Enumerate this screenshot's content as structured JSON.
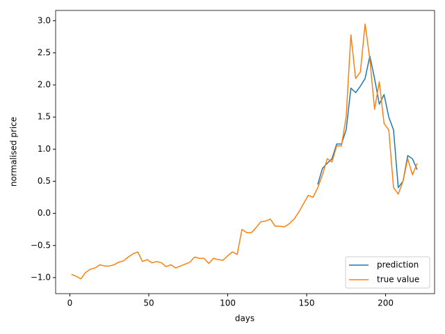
{
  "chart_data": {
    "type": "line",
    "xlabel": "days",
    "ylabel": "normalised price",
    "x": [
      1,
      4,
      7,
      10,
      13,
      16,
      19,
      22,
      25,
      28,
      31,
      34,
      37,
      40,
      43,
      46,
      49,
      52,
      55,
      58,
      61,
      64,
      67,
      70,
      73,
      76,
      79,
      82,
      85,
      88,
      91,
      94,
      97,
      100,
      103,
      106,
      109,
      112,
      115,
      118,
      121,
      124,
      127,
      130,
      133,
      136,
      139,
      142,
      145,
      148,
      151,
      154,
      157,
      160,
      163,
      166,
      169,
      172,
      175,
      178,
      181,
      184,
      187,
      190,
      193,
      196,
      199,
      202,
      205,
      208,
      211,
      214,
      217,
      220
    ],
    "series": [
      {
        "name": "prediction",
        "color": "#1f77b4",
        "values": [
          null,
          null,
          null,
          null,
          null,
          null,
          null,
          null,
          null,
          null,
          null,
          null,
          null,
          null,
          null,
          null,
          null,
          null,
          null,
          null,
          null,
          null,
          null,
          null,
          null,
          null,
          null,
          null,
          null,
          null,
          null,
          null,
          null,
          null,
          null,
          null,
          null,
          null,
          null,
          null,
          null,
          null,
          null,
          null,
          null,
          null,
          null,
          null,
          null,
          null,
          null,
          null,
          0.45,
          0.7,
          0.78,
          0.85,
          1.08,
          1.08,
          1.3,
          1.95,
          1.88,
          1.98,
          2.1,
          2.45,
          2.1,
          1.7,
          1.85,
          1.5,
          1.3,
          0.4,
          0.5,
          0.9,
          0.85,
          0.68
        ]
      },
      {
        "name": "true value",
        "color": "#ff7f0e",
        "values": [
          -0.95,
          -0.98,
          -1.02,
          -0.92,
          -0.87,
          -0.85,
          -0.8,
          -0.82,
          -0.82,
          -0.8,
          -0.76,
          -0.74,
          -0.68,
          -0.63,
          -0.6,
          -0.75,
          -0.72,
          -0.77,
          -0.75,
          -0.77,
          -0.83,
          -0.8,
          -0.85,
          -0.82,
          -0.79,
          -0.76,
          -0.68,
          -0.7,
          -0.7,
          -0.78,
          -0.7,
          -0.72,
          -0.73,
          -0.66,
          -0.6,
          -0.64,
          -0.25,
          -0.3,
          -0.3,
          -0.22,
          -0.13,
          -0.12,
          -0.09,
          -0.2,
          -0.2,
          -0.21,
          -0.16,
          -0.09,
          0.02,
          0.15,
          0.28,
          0.25,
          0.4,
          0.6,
          0.85,
          0.8,
          1.05,
          1.05,
          1.5,
          2.78,
          2.1,
          2.2,
          2.95,
          2.4,
          1.62,
          2.05,
          1.4,
          1.3,
          0.4,
          0.3,
          0.5,
          0.85,
          0.6,
          0.78
        ]
      }
    ],
    "xlim": [
      -9,
      231
    ],
    "ylim": [
      -1.25,
      3.16
    ],
    "xticks": [
      0,
      50,
      100,
      150,
      200
    ],
    "yticks": [
      {
        "value": -1,
        "label": "−1.0"
      },
      {
        "value": -0.5,
        "label": "−0.5"
      },
      {
        "value": 0,
        "label": "0.0"
      },
      {
        "value": 0.5,
        "label": "0.5"
      },
      {
        "value": 1,
        "label": "1.0"
      },
      {
        "value": 1.5,
        "label": "1.5"
      },
      {
        "value": 2,
        "label": "2.0"
      },
      {
        "value": 2.5,
        "label": "2.5"
      },
      {
        "value": 3,
        "label": "3.0"
      }
    ],
    "grid": false,
    "legend": "lower right"
  }
}
